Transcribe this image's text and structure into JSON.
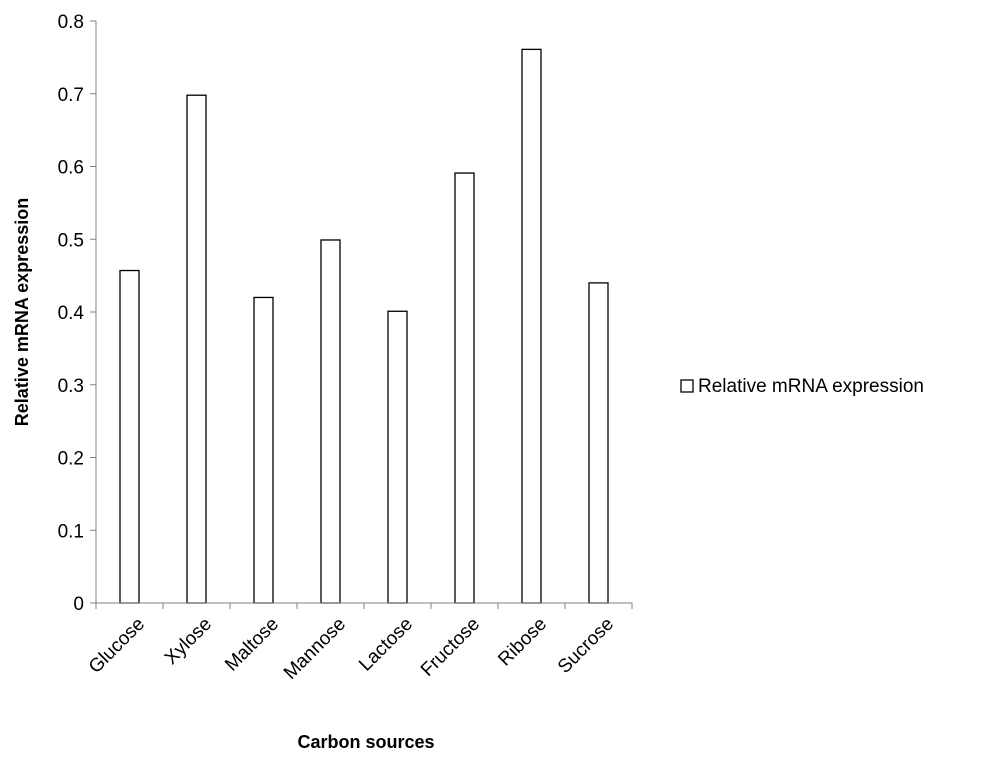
{
  "chart_data": {
    "type": "bar",
    "categories": [
      "Glucose",
      "Xylose",
      "Maltose",
      "Mannose",
      "Lactose",
      "Fructose",
      "Ribose",
      "Sucrose"
    ],
    "series": [
      {
        "name": "Relative mRNA expression",
        "values": [
          0.457,
          0.698,
          0.42,
          0.499,
          0.401,
          0.591,
          0.761,
          0.44
        ]
      }
    ],
    "xlabel": "Carbon sources",
    "ylabel": "Relative mRNA expression",
    "ylim": [
      0,
      0.8
    ],
    "yticks": [
      "0",
      "0.1",
      "0.2",
      "0.3",
      "0.4",
      "0.5",
      "0.6",
      "0.7",
      "0.8"
    ],
    "grid": false,
    "legend_position": "right",
    "colors": {
      "bar_fill": "#ffffff",
      "bar_stroke": "#000000",
      "axis": "#808080"
    }
  }
}
